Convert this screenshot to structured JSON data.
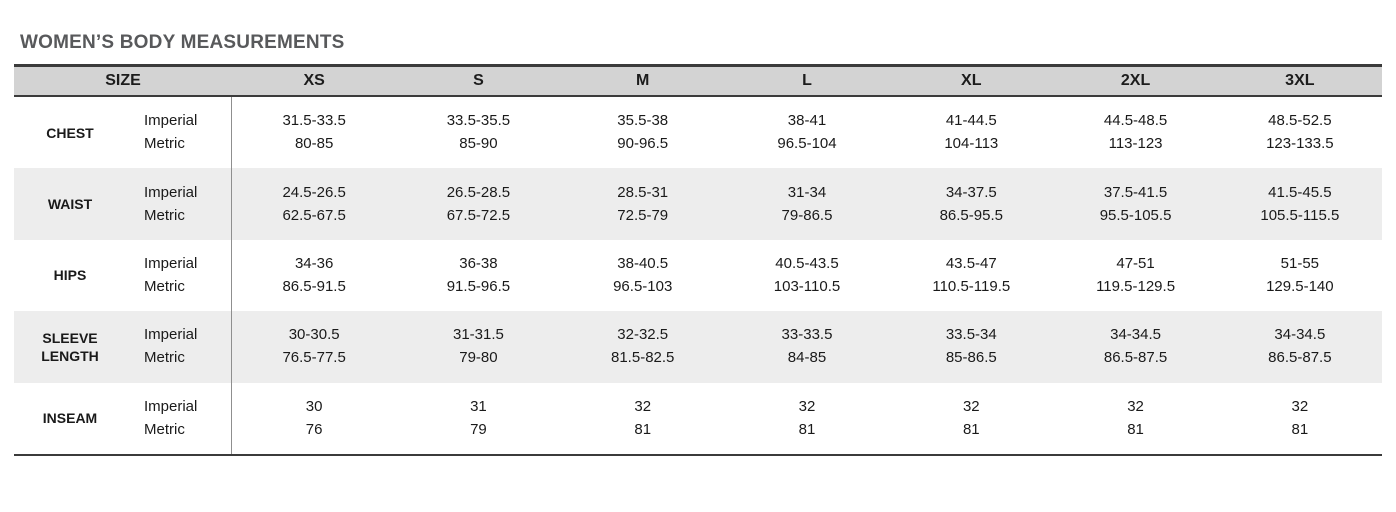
{
  "page": {
    "title": "WOMEN’S BODY MEASUREMENTS"
  },
  "colors": {
    "header_bg": "#d3d3d3",
    "alt_row_bg": "#ededed",
    "border_dark": "#3b3b3b",
    "divider": "#8f8f8f",
    "title_color": "#58595b",
    "text_color": "#1a1a1a"
  },
  "table": {
    "size_header": "SIZE",
    "sizes": [
      "XS",
      "S",
      "M",
      "L",
      "XL",
      "2XL",
      "3XL"
    ],
    "unit_labels": {
      "imperial": "Imperial",
      "metric": "Metric"
    },
    "rows": [
      {
        "label": "CHEST",
        "imperial": [
          "31.5-33.5",
          "33.5-35.5",
          "35.5-38",
          "38-41",
          "41-44.5",
          "44.5-48.5",
          "48.5-52.5"
        ],
        "metric": [
          "80-85",
          "85-90",
          "90-96.5",
          "96.5-104",
          "104-113",
          "113-123",
          "123-133.5"
        ]
      },
      {
        "label": "WAIST",
        "imperial": [
          "24.5-26.5",
          "26.5-28.5",
          "28.5-31",
          "31-34",
          "34-37.5",
          "37.5-41.5",
          "41.5-45.5"
        ],
        "metric": [
          "62.5-67.5",
          "67.5-72.5",
          "72.5-79",
          "79-86.5",
          "86.5-95.5",
          "95.5-105.5",
          "105.5-115.5"
        ]
      },
      {
        "label": "HIPS",
        "imperial": [
          "34-36",
          "36-38",
          "38-40.5",
          "40.5-43.5",
          "43.5-47",
          "47-51",
          "51-55"
        ],
        "metric": [
          "86.5-91.5",
          "91.5-96.5",
          "96.5-103",
          "103-110.5",
          "110.5-119.5",
          "119.5-129.5",
          "129.5-140"
        ]
      },
      {
        "label": "SLEEVE LENGTH",
        "imperial": [
          "30-30.5",
          "31-31.5",
          "32-32.5",
          "33-33.5",
          "33.5-34",
          "34-34.5",
          "34-34.5"
        ],
        "metric": [
          "76.5-77.5",
          "79-80",
          "81.5-82.5",
          "84-85",
          "85-86.5",
          "86.5-87.5",
          "86.5-87.5"
        ]
      },
      {
        "label": "INSEAM",
        "imperial": [
          "30",
          "31",
          "32",
          "32",
          "32",
          "32",
          "32"
        ],
        "metric": [
          "76",
          "79",
          "81",
          "81",
          "81",
          "81",
          "81"
        ]
      }
    ]
  }
}
